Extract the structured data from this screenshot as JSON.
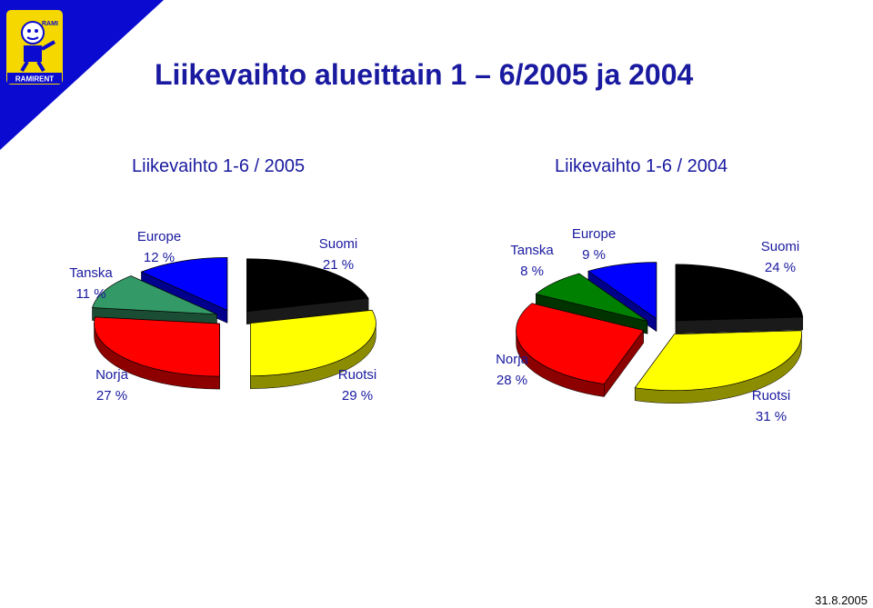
{
  "header": {
    "title": "Liikevaihto alueittain 1 – 6/2005 ja 2004",
    "logo_text": "RAMIRENT",
    "logo_badge": "RAMI",
    "accent_color": "#0a0ad0",
    "logo_color": "#f5d800"
  },
  "footer": {
    "date": "31.8.2005"
  },
  "chart_data": [
    {
      "type": "pie",
      "title": "Liikevaihto 1-6 / 2005",
      "slices": [
        {
          "name": "Suomi",
          "value": 21,
          "label": "21 %",
          "color": "#000000",
          "side": "#1a1a1a"
        },
        {
          "name": "Ruotsi",
          "value": 29,
          "label": "29 %",
          "color": "#ffff00",
          "side": "#8c8c00"
        },
        {
          "name": "Norja",
          "value": 27,
          "label": "27 %",
          "color": "#ff0000",
          "side": "#8c0000"
        },
        {
          "name": "Tanska",
          "value": 11,
          "label": "11 %",
          "color": "#339966",
          "side": "#1a4d33"
        },
        {
          "name": "Europe",
          "value": 12,
          "label": "12 %",
          "color": "#0000ff",
          "side": "#00008c"
        }
      ]
    },
    {
      "type": "pie",
      "title": "Liikevaihto 1-6 / 2004",
      "slices": [
        {
          "name": "Suomi",
          "value": 24,
          "label": "24 %",
          "color": "#000000",
          "side": "#1a1a1a"
        },
        {
          "name": "Ruotsi",
          "value": 31,
          "label": "31 %",
          "color": "#ffff00",
          "side": "#8c8c00"
        },
        {
          "name": "Norja",
          "value": 28,
          "label": "28 %",
          "color": "#ff0000",
          "side": "#8c0000"
        },
        {
          "name": "Tanska",
          "value": 8,
          "label": "8 %",
          "color": "#008000",
          "side": "#003300"
        },
        {
          "name": "Europe",
          "value": 9,
          "label": "9 %",
          "color": "#0000ff",
          "side": "#00008c"
        }
      ]
    }
  ]
}
